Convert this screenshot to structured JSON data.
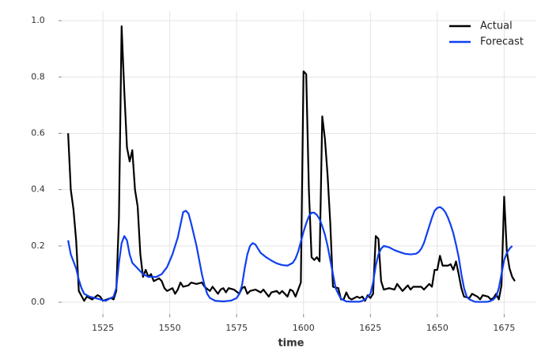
{
  "chart_data": {
    "type": "line",
    "xlabel": "time",
    "xlim": [
      1509.6,
      1687
    ],
    "xticks": [
      1525,
      1550,
      1575,
      1600,
      1625,
      1650,
      1675
    ],
    "ylim": [
      -0.042,
      1.034
    ],
    "yticks": [
      {
        "value": 0,
        "label": "0.0"
      },
      {
        "value": 0.2,
        "label": "0.2"
      },
      {
        "value": 0.4,
        "label": "0.4"
      },
      {
        "value": 0.6,
        "label": "0.6"
      },
      {
        "value": 0.8,
        "label": "0.8"
      },
      {
        "value": 1.0,
        "label": "1.0"
      }
    ],
    "grid": true,
    "legend": "upper right",
    "series": [
      {
        "name": "Actual",
        "color": "#000000",
        "x": [
          1512,
          1513,
          1514,
          1515,
          1516,
          1518,
          1519,
          1521,
          1523,
          1524,
          1525,
          1528,
          1529,
          1530,
          1531,
          1532,
          1533,
          1534,
          1535,
          1536,
          1537,
          1538,
          1539,
          1540,
          1541,
          1542,
          1543,
          1544,
          1546,
          1547,
          1548,
          1549,
          1551,
          1552,
          1553,
          1554,
          1555,
          1557,
          1558,
          1560,
          1562,
          1563,
          1565,
          1566,
          1568,
          1569,
          1570,
          1571,
          1572,
          1574,
          1576,
          1577,
          1578,
          1579,
          1580,
          1582,
          1584,
          1585,
          1587,
          1588,
          1590,
          1591,
          1592,
          1594,
          1595,
          1596,
          1597,
          1599,
          1600,
          1601,
          1602,
          1603,
          1604,
          1605,
          1606,
          1607,
          1608,
          1609,
          1610,
          1611,
          1613,
          1614,
          1615,
          1616,
          1617,
          1618,
          1620,
          1621,
          1622,
          1623,
          1624,
          1625,
          1626,
          1627,
          1628,
          1629,
          1630,
          1632,
          1634,
          1635,
          1637,
          1639,
          1640,
          1641,
          1644,
          1645,
          1647,
          1648,
          1649,
          1650,
          1651,
          1652,
          1654,
          1655,
          1656,
          1657,
          1658,
          1659,
          1660,
          1662,
          1663,
          1665,
          1666,
          1667,
          1669,
          1670,
          1671,
          1672,
          1673,
          1674,
          1675,
          1676,
          1677,
          1678,
          1679
        ],
        "values": [
          0.6,
          0.4,
          0.33,
          0.22,
          0.04,
          0.005,
          0.02,
          0.01,
          0.025,
          0.02,
          0.005,
          0.015,
          0.01,
          0.04,
          0.3,
          0.98,
          0.75,
          0.55,
          0.5,
          0.54,
          0.4,
          0.34,
          0.17,
          0.09,
          0.115,
          0.09,
          0.1,
          0.075,
          0.085,
          0.075,
          0.05,
          0.04,
          0.05,
          0.03,
          0.045,
          0.07,
          0.055,
          0.06,
          0.07,
          0.065,
          0.07,
          0.055,
          0.04,
          0.055,
          0.03,
          0.045,
          0.05,
          0.035,
          0.05,
          0.045,
          0.03,
          0.05,
          0.055,
          0.03,
          0.04,
          0.045,
          0.035,
          0.045,
          0.02,
          0.035,
          0.04,
          0.03,
          0.04,
          0.02,
          0.045,
          0.04,
          0.02,
          0.07,
          0.82,
          0.81,
          0.4,
          0.16,
          0.15,
          0.16,
          0.145,
          0.66,
          0.58,
          0.45,
          0.28,
          0.055,
          0.05,
          0.01,
          0.01,
          0.035,
          0.015,
          0.01,
          0.02,
          0.015,
          0.02,
          0.005,
          0.025,
          0.015,
          0.03,
          0.235,
          0.225,
          0.075,
          0.045,
          0.05,
          0.045,
          0.065,
          0.04,
          0.06,
          0.045,
          0.055,
          0.055,
          0.045,
          0.065,
          0.055,
          0.115,
          0.115,
          0.165,
          0.13,
          0.13,
          0.135,
          0.115,
          0.145,
          0.1,
          0.05,
          0.02,
          0.015,
          0.03,
          0.02,
          0.01,
          0.025,
          0.02,
          0.01,
          0.015,
          0.03,
          0.01,
          0.06,
          0.375,
          0.18,
          0.12,
          0.09,
          0.075
        ]
      },
      {
        "name": "Forecast",
        "color": "#0f3ff0",
        "x": [
          1512,
          1513,
          1515,
          1516,
          1517,
          1518,
          1520,
          1522,
          1524,
          1526,
          1528,
          1529,
          1530,
          1531,
          1532,
          1533,
          1534,
          1535,
          1536,
          1538,
          1540,
          1542,
          1545,
          1547,
          1549,
          1551,
          1553,
          1555,
          1556,
          1557,
          1558,
          1560,
          1562,
          1563,
          1564,
          1565,
          1567,
          1570,
          1573,
          1575,
          1576,
          1577,
          1578,
          1579,
          1580,
          1581,
          1582,
          1583,
          1584,
          1586,
          1588,
          1590,
          1592,
          1594,
          1596,
          1597,
          1598,
          1599,
          1600,
          1601,
          1602,
          1603,
          1604,
          1605,
          1606,
          1607,
          1608,
          1609,
          1610,
          1611,
          1612,
          1613,
          1614,
          1616,
          1618,
          1621,
          1622,
          1623,
          1625,
          1626,
          1627,
          1628,
          1629,
          1630,
          1632,
          1634,
          1636,
          1638,
          1640,
          1642,
          1643,
          1644,
          1645,
          1646,
          1647,
          1648,
          1649,
          1650,
          1651,
          1652,
          1653,
          1654,
          1655,
          1656,
          1657,
          1658,
          1659,
          1660,
          1661,
          1662,
          1664,
          1666,
          1669,
          1670,
          1671,
          1672,
          1673,
          1674,
          1675,
          1676,
          1677,
          1678
        ],
        "values": [
          0.22,
          0.17,
          0.12,
          0.08,
          0.05,
          0.03,
          0.02,
          0.015,
          0.01,
          0.005,
          0.015,
          0.02,
          0.05,
          0.14,
          0.21,
          0.235,
          0.22,
          0.17,
          0.14,
          0.12,
          0.1,
          0.09,
          0.09,
          0.1,
          0.125,
          0.17,
          0.23,
          0.32,
          0.325,
          0.315,
          0.28,
          0.2,
          0.1,
          0.06,
          0.03,
          0.015,
          0.005,
          0.003,
          0.006,
          0.015,
          0.03,
          0.06,
          0.12,
          0.17,
          0.2,
          0.21,
          0.205,
          0.19,
          0.175,
          0.16,
          0.148,
          0.138,
          0.132,
          0.13,
          0.14,
          0.155,
          0.18,
          0.215,
          0.25,
          0.28,
          0.305,
          0.318,
          0.318,
          0.31,
          0.295,
          0.27,
          0.24,
          0.2,
          0.15,
          0.1,
          0.05,
          0.03,
          0.012,
          0.003,
          0.002,
          0.002,
          0.005,
          0.01,
          0.03,
          0.07,
          0.13,
          0.17,
          0.19,
          0.2,
          0.195,
          0.185,
          0.178,
          0.172,
          0.17,
          0.172,
          0.178,
          0.19,
          0.21,
          0.24,
          0.27,
          0.3,
          0.325,
          0.335,
          0.338,
          0.332,
          0.32,
          0.3,
          0.275,
          0.245,
          0.205,
          0.16,
          0.1,
          0.05,
          0.02,
          0.01,
          0.002,
          0.001,
          0.002,
          0.005,
          0.01,
          0.02,
          0.05,
          0.1,
          0.15,
          0.175,
          0.19,
          0.2
        ]
      }
    ]
  }
}
